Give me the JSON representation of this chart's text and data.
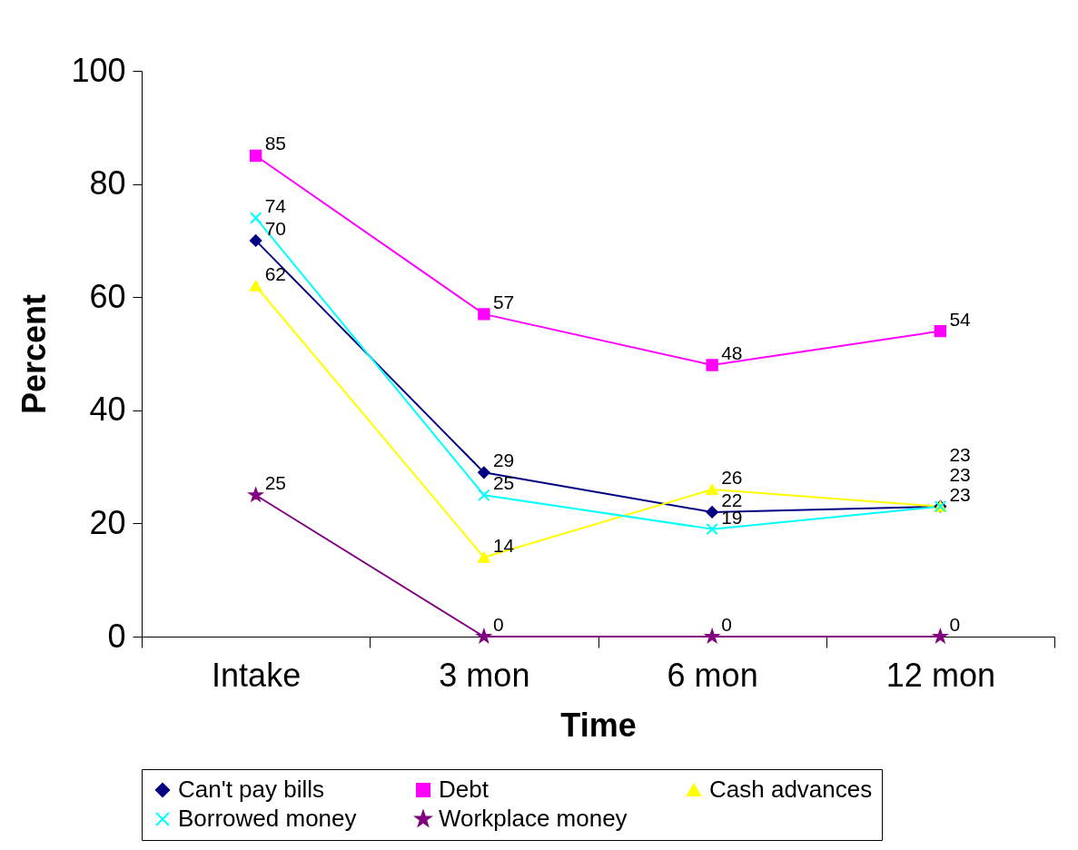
{
  "chart_data": {
    "type": "line",
    "xlabel": "Time",
    "ylabel": "Percent",
    "categories": [
      "Intake",
      "3 mon",
      "6 mon",
      "12 mon"
    ],
    "series": [
      {
        "name": "Can't pay bills",
        "color": "#000080",
        "marker": "diamond",
        "values": [
          70,
          29,
          22,
          23
        ]
      },
      {
        "name": "Debt",
        "color": "#ff00ff",
        "marker": "square",
        "values": [
          85,
          57,
          48,
          54
        ]
      },
      {
        "name": "Cash advances",
        "color": "#ffff00",
        "marker": "triangle",
        "values": [
          62,
          14,
          26,
          23
        ]
      },
      {
        "name": "Borrowed money",
        "color": "#00ffff",
        "marker": "cross",
        "values": [
          74,
          25,
          19,
          23
        ]
      },
      {
        "name": "Workplace money",
        "color": "#800080",
        "marker": "star",
        "values": [
          25,
          0,
          0,
          0
        ]
      }
    ],
    "ylim": [
      0,
      100
    ],
    "yticks": [
      0,
      20,
      40,
      60,
      80,
      100
    ],
    "data_labels": true,
    "legend": "bottom",
    "grid": false,
    "line_style": "solid"
  }
}
